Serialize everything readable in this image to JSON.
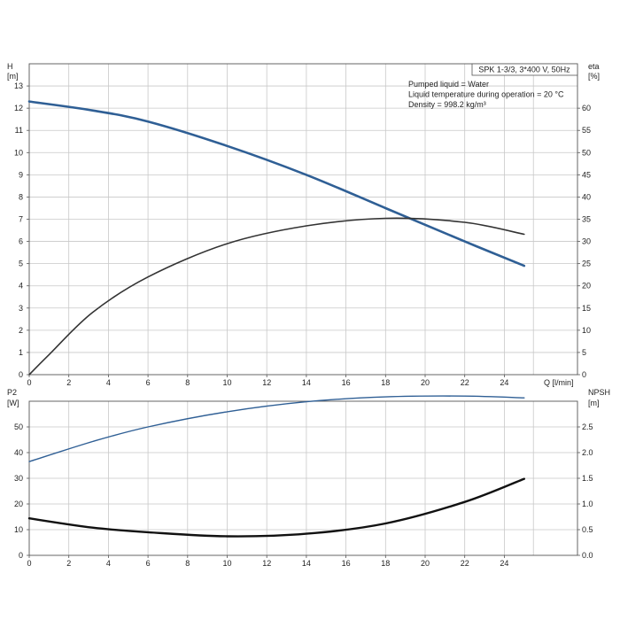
{
  "chart_data": [
    {
      "type": "line",
      "title": "SPK 1-3/3, 3*400 V, 50Hz",
      "annotations": [
        "Pumped liquid = Water",
        "Liquid temperature during operation = 20 °C",
        "Density = 998.2 kg/m³"
      ],
      "x_label_unit": "Q [l/min]",
      "left_axis": {
        "label": "H",
        "unit": "[m]",
        "range": [
          0,
          14
        ],
        "ticks": [
          0,
          1,
          2,
          3,
          4,
          5,
          6,
          7,
          8,
          9,
          10,
          11,
          12,
          13
        ]
      },
      "right_axis": {
        "label": "eta",
        "unit": "[%]",
        "range": [
          0,
          70
        ],
        "ticks": [
          0,
          5,
          10,
          15,
          20,
          25,
          30,
          35,
          40,
          45,
          50,
          55,
          60
        ]
      },
      "x_range": [
        0,
        26
      ],
      "x_ticks": [
        0,
        2,
        4,
        6,
        8,
        10,
        12,
        14,
        16,
        18,
        20,
        22,
        24
      ],
      "grid": true,
      "series": [
        {
          "axis": "left",
          "color": "#2f5f95",
          "x": [
            0,
            3.2,
            6,
            10,
            14,
            18,
            22,
            25
          ],
          "y": [
            12.3,
            11.9,
            11.4,
            10.3,
            9.0,
            7.5,
            6.0,
            4.9
          ]
        },
        {
          "axis": "right",
          "color": "#333333",
          "x": [
            0,
            1,
            3.2,
            6,
            10,
            14,
            18,
            22,
            25
          ],
          "y": [
            0,
            4.5,
            14,
            22,
            29.5,
            33.5,
            35.2,
            34.3,
            31.6
          ]
        }
      ]
    },
    {
      "type": "line",
      "x_label_unit": "",
      "left_axis": {
        "label": "P2",
        "unit": "[W]",
        "range": [
          0,
          60
        ],
        "ticks": [
          0,
          10,
          20,
          30,
          40,
          50
        ]
      },
      "right_axis": {
        "label": "NPSH",
        "unit": "[m]",
        "range": [
          0,
          3.0
        ],
        "ticks": [
          "0.0",
          "0.5",
          "1.0",
          "1.5",
          "2.0",
          "2.5"
        ]
      },
      "x_range": [
        0,
        26
      ],
      "x_ticks": [
        0,
        2,
        4,
        6,
        8,
        10,
        12,
        14,
        16,
        18,
        20,
        22,
        24
      ],
      "grid": true,
      "series": [
        {
          "axis": "left",
          "color": "#2f5f95",
          "x": [
            0,
            3.2,
            6,
            10,
            14,
            18,
            22,
            25
          ],
          "y": [
            36.5,
            44.3,
            50.0,
            55.9,
            59.8,
            61.7,
            62.0,
            61.3
          ]
        },
        {
          "axis": "right",
          "color": "#111111",
          "x": [
            0,
            3.2,
            6,
            10,
            14,
            18,
            22,
            25
          ],
          "y": [
            0.72,
            0.54,
            0.45,
            0.37,
            0.42,
            0.62,
            1.04,
            1.49
          ]
        }
      ]
    }
  ]
}
